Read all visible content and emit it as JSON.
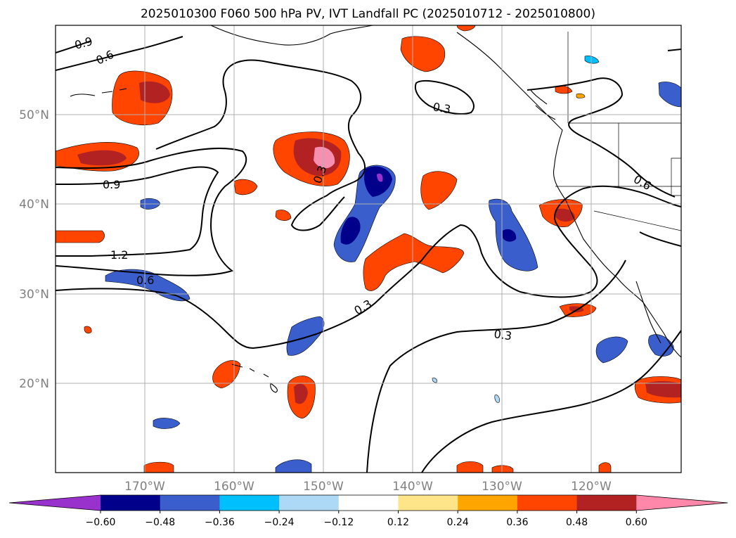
{
  "title": "2025010300 F060 500 hPa PV, IVT Landfall PC (2025010712 - 2025010800)",
  "map": {
    "lon_ticks": [
      "170°W",
      "160°W",
      "150°W",
      "140°W",
      "130°W",
      "120°W"
    ],
    "lat_ticks": [
      "50°N",
      "40°N",
      "30°N",
      "20°N"
    ],
    "contour_labels": [
      "0.9",
      "0.6",
      "0.3",
      "0.9",
      "1.2",
      "0.6",
      "0.3",
      "0.3",
      "0.3",
      "0.6"
    ]
  },
  "colorbar": {
    "ticks": [
      "−0.60",
      "−0.48",
      "−0.36",
      "−0.24",
      "−0.12",
      "0.12",
      "0.24",
      "0.36",
      "0.48",
      "0.60"
    ],
    "colors": [
      "#9932cc",
      "#00008b",
      "#3a5fcd",
      "#00bfff",
      "#add8f6",
      "#ffffff",
      "#ffe58a",
      "#ffa500",
      "#ff4500",
      "#b22222",
      "#ff88aa"
    ]
  }
}
